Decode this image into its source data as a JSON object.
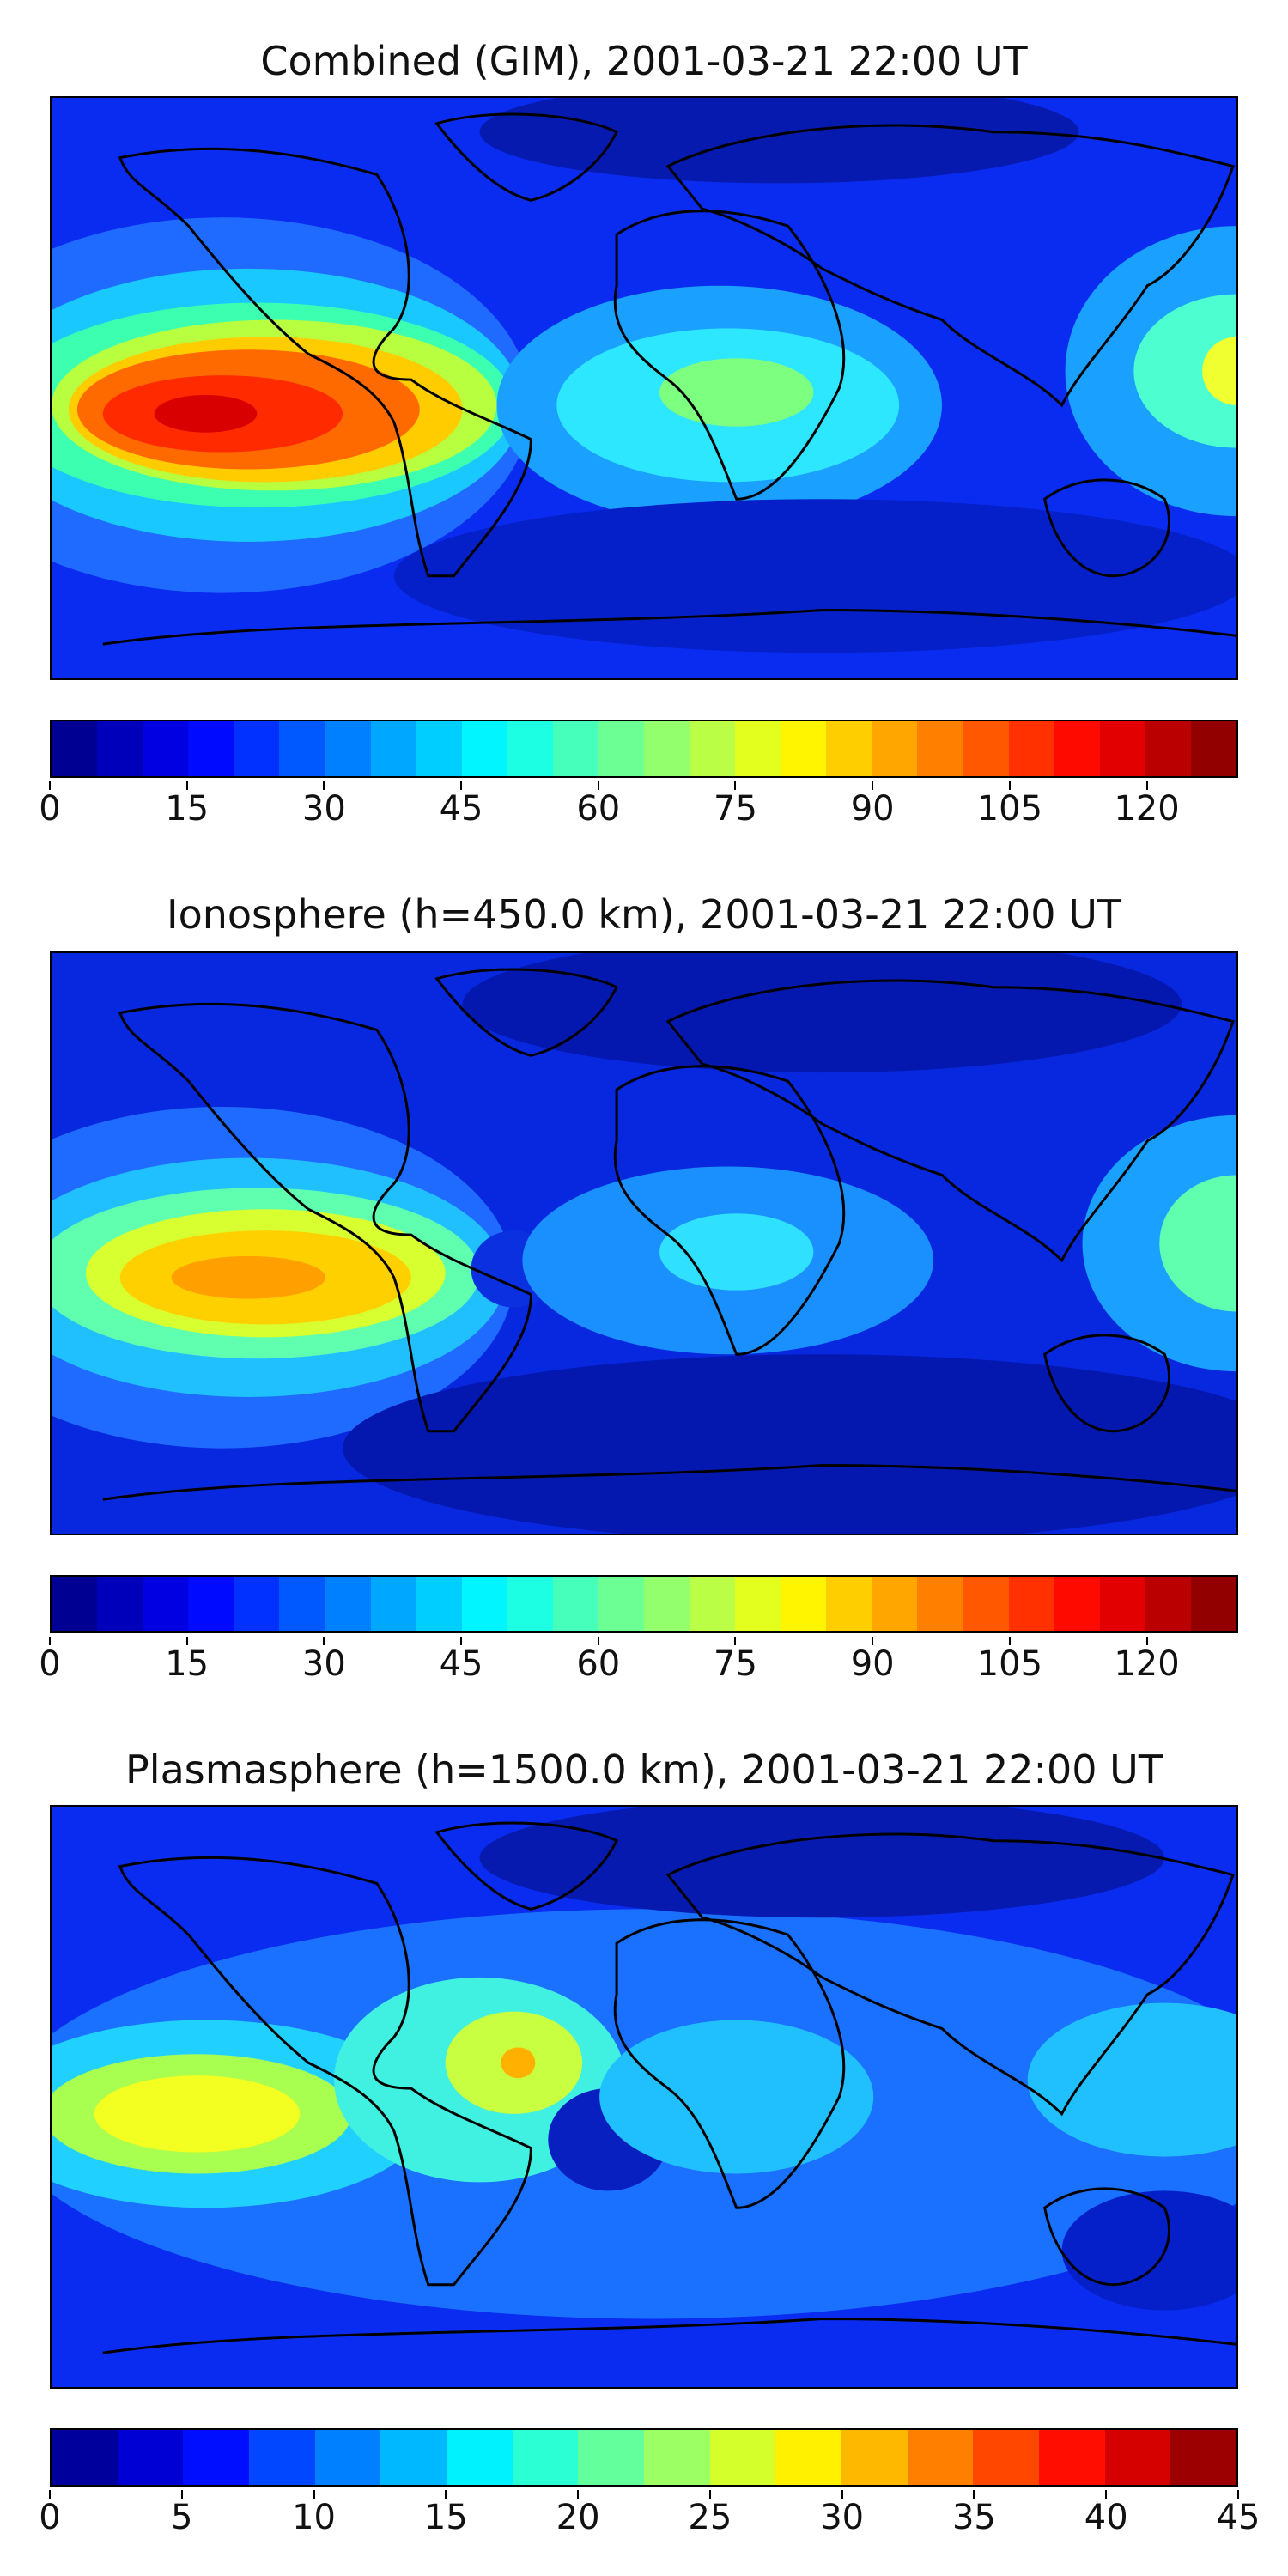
{
  "panels": [
    {
      "title": "Combined (GIM), 2001-03-21 22:00 UT",
      "colorbar": {
        "levels": 26,
        "min": 0,
        "max": 130,
        "ticks": [
          "0",
          "15",
          "30",
          "45",
          "60",
          "75",
          "90",
          "105",
          "120"
        ],
        "tick_values": [
          0,
          15,
          30,
          45,
          60,
          75,
          90,
          105,
          120
        ]
      },
      "map": "combined"
    },
    {
      "title": "Ionosphere  (h=450.0 km), 2001-03-21 22:00 UT",
      "colorbar": {
        "levels": 26,
        "min": 0,
        "max": 130,
        "ticks": [
          "0",
          "15",
          "30",
          "45",
          "60",
          "75",
          "90",
          "105",
          "120"
        ],
        "tick_values": [
          0,
          15,
          30,
          45,
          60,
          75,
          90,
          105,
          120
        ]
      },
      "map": "ionosphere"
    },
    {
      "title": "Plasmasphere (h=1500.0 km), 2001-03-21 22:00 UT",
      "colorbar": {
        "levels": 18,
        "min": 0,
        "max": 45,
        "ticks": [
          "0",
          "5",
          "10",
          "15",
          "20",
          "25",
          "30",
          "35",
          "40",
          "45"
        ],
        "tick_values": [
          0,
          5,
          10,
          15,
          20,
          25,
          30,
          35,
          40,
          45
        ]
      },
      "map": "plasmasphere"
    }
  ],
  "colormap": "jet"
}
